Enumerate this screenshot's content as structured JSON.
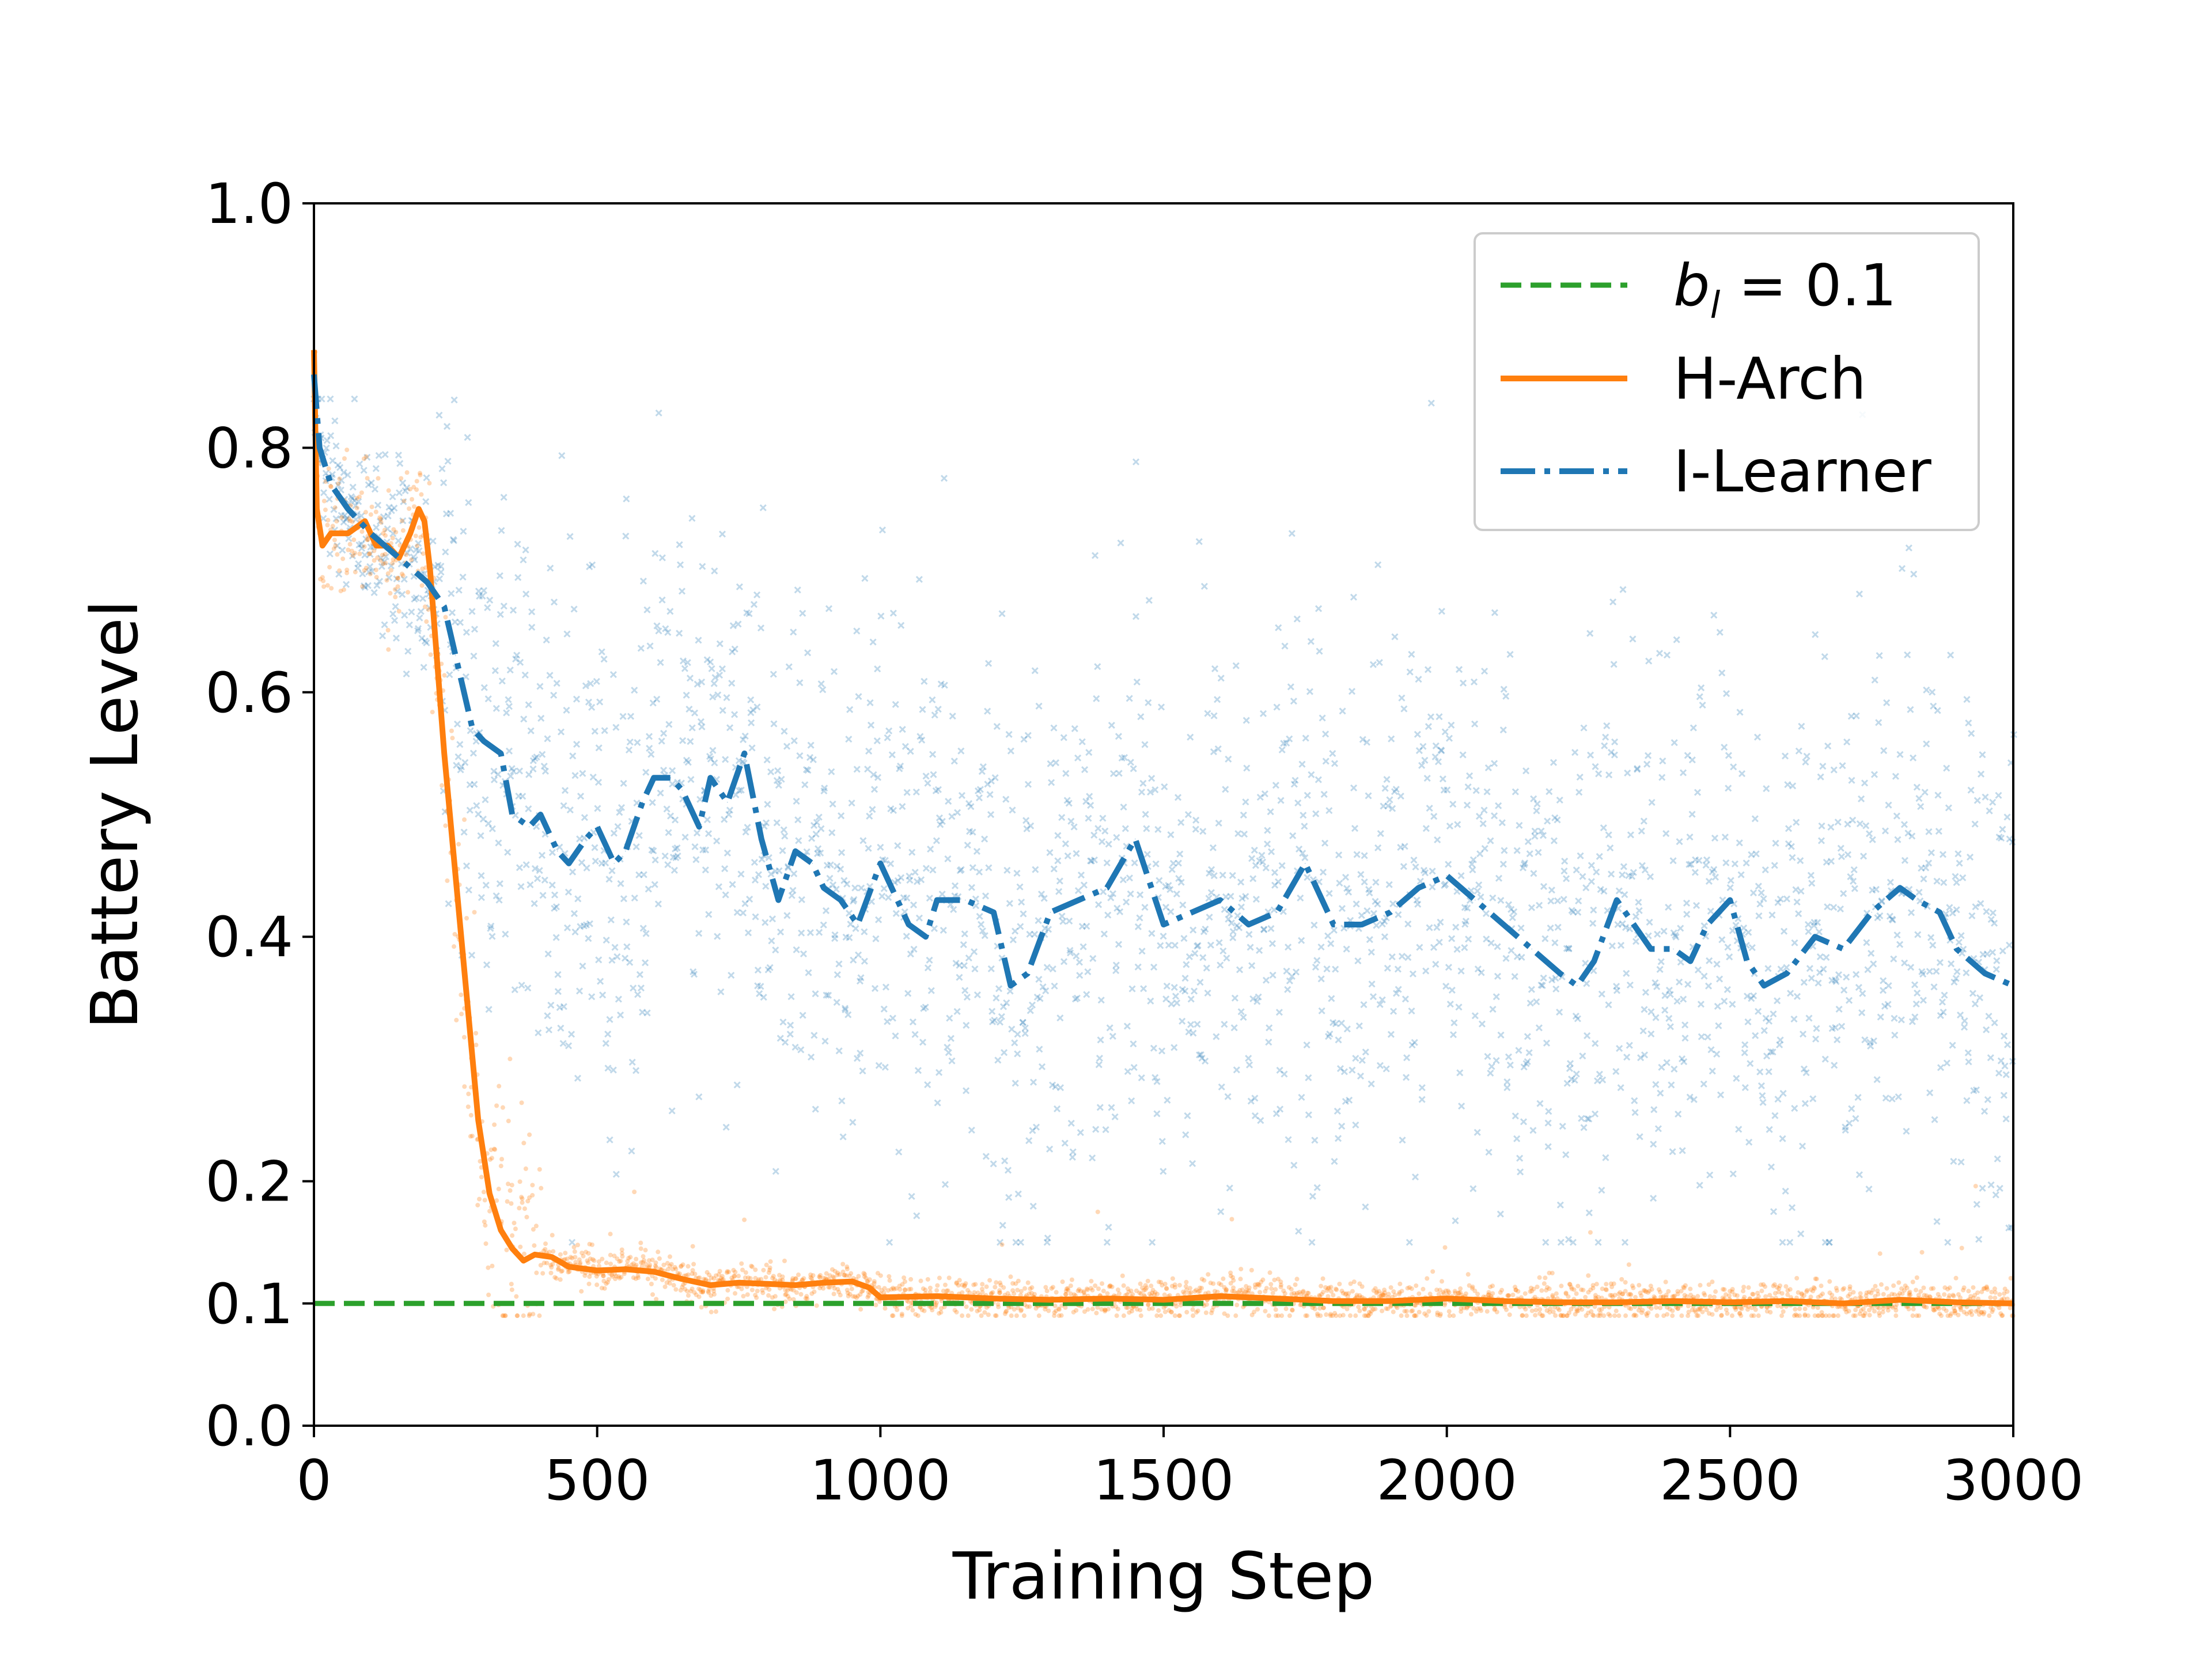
{
  "chart_data": {
    "type": "line",
    "title": "",
    "xlabel": "Training Step",
    "ylabel": "Battery Level",
    "xlim": [
      0,
      3000
    ],
    "ylim": [
      0.0,
      1.0
    ],
    "xticks": [
      0,
      500,
      1000,
      1500,
      2000,
      2500,
      3000
    ],
    "xtick_labels": [
      "0",
      "500",
      "1000",
      "1500",
      "2000",
      "2500",
      "3000"
    ],
    "yticks": [
      0.0,
      0.1,
      0.2,
      0.4,
      0.6,
      0.8,
      1.0
    ],
    "ytick_labels": [
      "0.0",
      "0.1",
      "0.2",
      "0.4",
      "0.6",
      "0.8",
      "1.0"
    ],
    "grid": false,
    "legend_position": "top-right",
    "colors": {
      "threshold": "#2ca02c",
      "harch": "#ff7f0e",
      "ilearner": "#1f77b4"
    },
    "series": [
      {
        "name": "b_l = 0.1",
        "legend_label": "b",
        "legend_subscript": "l",
        "legend_suffix": " = 0.1",
        "style": "dashed",
        "x": [
          0,
          3000
        ],
        "values": [
          0.1,
          0.1
        ]
      },
      {
        "name": "H-Arch",
        "legend_label": "H-Arch",
        "style": "solid",
        "x": [
          0,
          5,
          15,
          30,
          60,
          90,
          110,
          130,
          150,
          170,
          185,
          195,
          205,
          215,
          230,
          250,
          270,
          290,
          310,
          330,
          350,
          370,
          390,
          420,
          450,
          500,
          550,
          600,
          650,
          700,
          750,
          800,
          850,
          900,
          950,
          980,
          1000,
          1100,
          1200,
          1300,
          1400,
          1500,
          1600,
          1700,
          1800,
          1900,
          2000,
          2100,
          2200,
          2300,
          2400,
          2500,
          2600,
          2700,
          2800,
          2900,
          3000
        ],
        "values": [
          0.88,
          0.75,
          0.72,
          0.73,
          0.73,
          0.74,
          0.72,
          0.72,
          0.71,
          0.73,
          0.75,
          0.74,
          0.7,
          0.64,
          0.55,
          0.45,
          0.35,
          0.25,
          0.19,
          0.16,
          0.145,
          0.135,
          0.14,
          0.138,
          0.13,
          0.127,
          0.128,
          0.126,
          0.12,
          0.115,
          0.117,
          0.116,
          0.115,
          0.117,
          0.118,
          0.113,
          0.105,
          0.106,
          0.104,
          0.103,
          0.104,
          0.103,
          0.106,
          0.104,
          0.102,
          0.102,
          0.104,
          0.102,
          0.101,
          0.101,
          0.102,
          0.101,
          0.102,
          0.1,
          0.103,
          0.101,
          0.1
        ]
      },
      {
        "name": "I-Learner",
        "legend_label": "I-Learner",
        "style": "dashdot",
        "x": [
          0,
          10,
          30,
          60,
          100,
          150,
          200,
          230,
          250,
          280,
          300,
          330,
          350,
          380,
          400,
          430,
          450,
          480,
          500,
          530,
          550,
          580,
          600,
          630,
          650,
          680,
          700,
          730,
          760,
          790,
          820,
          850,
          880,
          900,
          930,
          960,
          1000,
          1050,
          1080,
          1100,
          1150,
          1200,
          1230,
          1260,
          1300,
          1350,
          1400,
          1450,
          1500,
          1550,
          1600,
          1650,
          1700,
          1750,
          1800,
          1850,
          1900,
          1950,
          2000,
          2050,
          2100,
          2150,
          2200,
          2230,
          2260,
          2300,
          2330,
          2360,
          2400,
          2430,
          2460,
          2500,
          2530,
          2560,
          2600,
          2650,
          2700,
          2750,
          2800,
          2830,
          2870,
          2900,
          2950,
          3000
        ],
        "values": [
          0.86,
          0.8,
          0.77,
          0.75,
          0.73,
          0.71,
          0.69,
          0.67,
          0.63,
          0.57,
          0.56,
          0.55,
          0.5,
          0.49,
          0.5,
          0.47,
          0.46,
          0.48,
          0.49,
          0.46,
          0.47,
          0.51,
          0.53,
          0.53,
          0.52,
          0.49,
          0.53,
          0.51,
          0.55,
          0.48,
          0.43,
          0.47,
          0.46,
          0.44,
          0.43,
          0.41,
          0.46,
          0.41,
          0.4,
          0.43,
          0.43,
          0.42,
          0.36,
          0.37,
          0.42,
          0.43,
          0.44,
          0.48,
          0.41,
          0.42,
          0.43,
          0.41,
          0.42,
          0.46,
          0.41,
          0.41,
          0.42,
          0.44,
          0.45,
          0.43,
          0.41,
          0.39,
          0.37,
          0.36,
          0.38,
          0.43,
          0.41,
          0.39,
          0.39,
          0.38,
          0.41,
          0.43,
          0.38,
          0.36,
          0.37,
          0.4,
          0.39,
          0.42,
          0.44,
          0.43,
          0.42,
          0.39,
          0.37,
          0.36
        ]
      }
    ]
  }
}
